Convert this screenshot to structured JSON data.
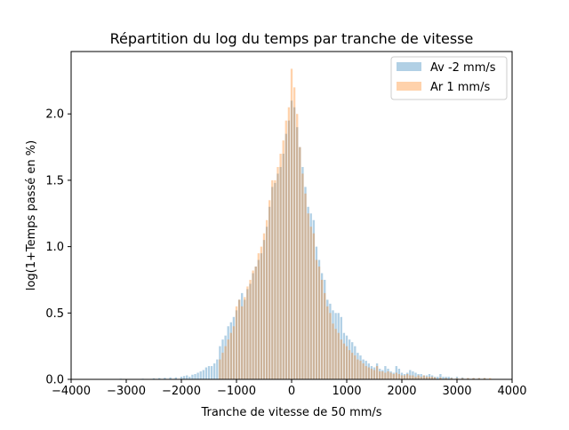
{
  "chart_data": {
    "type": "bar",
    "title": "Répartition du log du temps par tranche de vitesse",
    "xlabel": "Tranche de vitesse de 50 mm/s",
    "ylabel": "log(1+Temps passé en %)",
    "xlim": [
      -4000,
      4000
    ],
    "ylim": [
      0,
      2.47
    ],
    "bin_width": 50,
    "x_ticks": [
      -4000,
      -3000,
      -2000,
      -1000,
      0,
      1000,
      2000,
      3000,
      4000
    ],
    "x_tick_labels": [
      "−4000",
      "−3000",
      "−2000",
      "−1000",
      "0",
      "1000",
      "2000",
      "3000",
      "4000"
    ],
    "y_ticks": [
      0.0,
      0.5,
      1.0,
      1.5,
      2.0
    ],
    "y_tick_labels": [
      "0.0",
      "0.5",
      "1.0",
      "1.5",
      "2.0"
    ],
    "grid": false,
    "legend_position": "upper right",
    "series": [
      {
        "name": "Av -2 mm/s",
        "color": "#1f77b4",
        "alpha": 0.35,
        "points": [
          [
            -3100,
            0.005
          ],
          [
            -2700,
            0.005
          ],
          [
            -2500,
            0.008
          ],
          [
            -2400,
            0.01
          ],
          [
            -2300,
            0.012
          ],
          [
            -2200,
            0.015
          ],
          [
            -2100,
            0.015
          ],
          [
            -2000,
            0.02
          ],
          [
            -1950,
            0.025
          ],
          [
            -1900,
            0.03
          ],
          [
            -1850,
            0.02
          ],
          [
            -1800,
            0.035
          ],
          [
            -1750,
            0.04
          ],
          [
            -1700,
            0.05
          ],
          [
            -1650,
            0.06
          ],
          [
            -1600,
            0.07
          ],
          [
            -1550,
            0.09
          ],
          [
            -1500,
            0.1
          ],
          [
            -1450,
            0.1
          ],
          [
            -1400,
            0.12
          ],
          [
            -1350,
            0.15
          ],
          [
            -1300,
            0.25
          ],
          [
            -1250,
            0.3
          ],
          [
            -1200,
            0.33
          ],
          [
            -1150,
            0.4
          ],
          [
            -1100,
            0.43
          ],
          [
            -1050,
            0.47
          ],
          [
            -1000,
            0.52
          ],
          [
            -950,
            0.6
          ],
          [
            -900,
            0.65
          ],
          [
            -850,
            0.6
          ],
          [
            -800,
            0.68
          ],
          [
            -750,
            0.72
          ],
          [
            -700,
            0.8
          ],
          [
            -650,
            0.85
          ],
          [
            -600,
            0.9
          ],
          [
            -550,
            0.95
          ],
          [
            -500,
            1.05
          ],
          [
            -450,
            1.15
          ],
          [
            -400,
            1.3
          ],
          [
            -350,
            1.45
          ],
          [
            -300,
            1.48
          ],
          [
            -250,
            1.55
          ],
          [
            -200,
            1.6
          ],
          [
            -150,
            1.7
          ],
          [
            -100,
            1.85
          ],
          [
            -50,
            1.95
          ],
          [
            0,
            2.1
          ],
          [
            50,
            2.05
          ],
          [
            100,
            1.9
          ],
          [
            150,
            1.75
          ],
          [
            200,
            1.6
          ],
          [
            250,
            1.45
          ],
          [
            300,
            1.3
          ],
          [
            350,
            1.25
          ],
          [
            400,
            1.2
          ],
          [
            450,
            1.0
          ],
          [
            500,
            0.9
          ],
          [
            550,
            0.8
          ],
          [
            600,
            0.75
          ],
          [
            650,
            0.6
          ],
          [
            700,
            0.57
          ],
          [
            750,
            0.52
          ],
          [
            800,
            0.5
          ],
          [
            850,
            0.5
          ],
          [
            900,
            0.47
          ],
          [
            950,
            0.35
          ],
          [
            1000,
            0.33
          ],
          [
            1050,
            0.3
          ],
          [
            1100,
            0.28
          ],
          [
            1150,
            0.25
          ],
          [
            1200,
            0.2
          ],
          [
            1250,
            0.18
          ],
          [
            1300,
            0.15
          ],
          [
            1350,
            0.14
          ],
          [
            1400,
            0.12
          ],
          [
            1450,
            0.1
          ],
          [
            1500,
            0.09
          ],
          [
            1550,
            0.12
          ],
          [
            1600,
            0.08
          ],
          [
            1650,
            0.07
          ],
          [
            1700,
            0.1
          ],
          [
            1750,
            0.08
          ],
          [
            1800,
            0.06
          ],
          [
            1850,
            0.05
          ],
          [
            1900,
            0.1
          ],
          [
            1950,
            0.08
          ],
          [
            2000,
            0.05
          ],
          [
            2050,
            0.04
          ],
          [
            2100,
            0.05
          ],
          [
            2150,
            0.07
          ],
          [
            2200,
            0.06
          ],
          [
            2250,
            0.05
          ],
          [
            2300,
            0.04
          ],
          [
            2350,
            0.04
          ],
          [
            2400,
            0.03
          ],
          [
            2450,
            0.03
          ],
          [
            2500,
            0.04
          ],
          [
            2550,
            0.03
          ],
          [
            2600,
            0.02
          ],
          [
            2650,
            0.02
          ],
          [
            2700,
            0.04
          ],
          [
            2750,
            0.02
          ],
          [
            2800,
            0.02
          ],
          [
            2850,
            0.02
          ],
          [
            2900,
            0.015
          ],
          [
            3000,
            0.02
          ],
          [
            3100,
            0.015
          ],
          [
            3200,
            0.01
          ],
          [
            3300,
            0.01
          ],
          [
            3400,
            0.01
          ],
          [
            3500,
            0.01
          ]
        ]
      },
      {
        "name": "Ar 1 mm/s",
        "color": "#ff7f0e",
        "alpha": 0.35,
        "points": [
          [
            -1300,
            0.15
          ],
          [
            -1250,
            0.2
          ],
          [
            -1200,
            0.25
          ],
          [
            -1150,
            0.3
          ],
          [
            -1100,
            0.35
          ],
          [
            -1050,
            0.4
          ],
          [
            -1000,
            0.55
          ],
          [
            -950,
            0.6
          ],
          [
            -900,
            0.55
          ],
          [
            -850,
            0.62
          ],
          [
            -800,
            0.7
          ],
          [
            -750,
            0.75
          ],
          [
            -700,
            0.82
          ],
          [
            -650,
            0.85
          ],
          [
            -600,
            0.95
          ],
          [
            -550,
            1.0
          ],
          [
            -500,
            1.1
          ],
          [
            -450,
            1.2
          ],
          [
            -400,
            1.35
          ],
          [
            -350,
            1.5
          ],
          [
            -300,
            1.5
          ],
          [
            -250,
            1.6
          ],
          [
            -200,
            1.7
          ],
          [
            -150,
            1.8
          ],
          [
            -100,
            1.95
          ],
          [
            -50,
            2.05
          ],
          [
            0,
            2.34
          ],
          [
            50,
            2.2
          ],
          [
            100,
            2.0
          ],
          [
            150,
            1.75
          ],
          [
            200,
            1.55
          ],
          [
            250,
            1.4
          ],
          [
            300,
            1.25
          ],
          [
            350,
            1.15
          ],
          [
            400,
            1.1
          ],
          [
            450,
            0.9
          ],
          [
            500,
            0.85
          ],
          [
            550,
            0.75
          ],
          [
            600,
            0.65
          ],
          [
            650,
            0.55
          ],
          [
            700,
            0.5
          ],
          [
            750,
            0.42
          ],
          [
            800,
            0.38
          ],
          [
            850,
            0.35
          ],
          [
            900,
            0.3
          ],
          [
            950,
            0.27
          ],
          [
            1000,
            0.25
          ],
          [
            1050,
            0.22
          ],
          [
            1100,
            0.2
          ],
          [
            1150,
            0.18
          ],
          [
            1200,
            0.15
          ],
          [
            1250,
            0.14
          ],
          [
            1300,
            0.12
          ],
          [
            1350,
            0.1
          ],
          [
            1400,
            0.09
          ],
          [
            1450,
            0.08
          ],
          [
            1500,
            0.07
          ],
          [
            1550,
            0.1
          ],
          [
            1600,
            0.06
          ],
          [
            1650,
            0.06
          ],
          [
            1700,
            0.05
          ],
          [
            1750,
            0.06
          ],
          [
            1800,
            0.05
          ],
          [
            1850,
            0.04
          ],
          [
            1900,
            0.05
          ],
          [
            1950,
            0.04
          ],
          [
            2000,
            0.03
          ],
          [
            2050,
            0.03
          ],
          [
            2100,
            0.04
          ],
          [
            2150,
            0.03
          ],
          [
            2200,
            0.03
          ],
          [
            2250,
            0.02
          ],
          [
            2300,
            0.03
          ],
          [
            2350,
            0.02
          ],
          [
            2400,
            0.03
          ],
          [
            2450,
            0.02
          ],
          [
            2500,
            0.02
          ],
          [
            2550,
            0.02
          ],
          [
            2600,
            0.015
          ],
          [
            2700,
            0.015
          ],
          [
            2800,
            0.01
          ],
          [
            2900,
            0.01
          ],
          [
            3000,
            0.01
          ],
          [
            3100,
            0.01
          ],
          [
            3200,
            0.01
          ],
          [
            3300,
            0.01
          ],
          [
            3400,
            0.01
          ],
          [
            3500,
            0.01
          ],
          [
            3600,
            0.01
          ]
        ]
      }
    ]
  }
}
